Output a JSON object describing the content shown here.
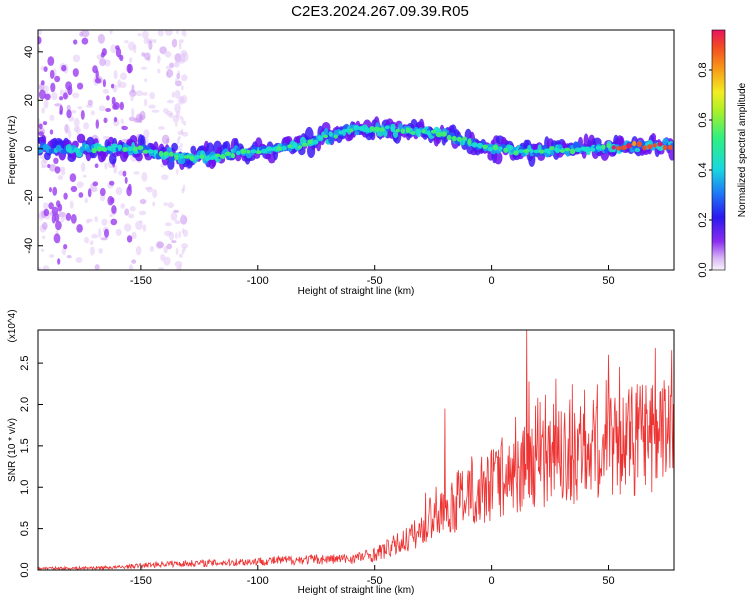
{
  "figure": {
    "title": "C2E3.2024.267.09.39.R05"
  },
  "colors": {
    "spectrogram_background": "#ffffff",
    "snr_line": "#ee3333",
    "colormap": [
      "#f7f0fa",
      "#e4c8f5",
      "#c890f0",
      "#9a3cf0",
      "#6a10f0",
      "#3a1cf5",
      "#1e5ef8",
      "#16a8f0",
      "#18e0d0",
      "#40f070",
      "#a0f030",
      "#f0f020",
      "#f8a018",
      "#f45020",
      "#e81860"
    ]
  },
  "chart_data": [
    {
      "type": "heatmap",
      "title": "",
      "xlabel": "Height of straight line (km)",
      "ylabel": "Frequency (Hz)",
      "xlim": [
        -194,
        78
      ],
      "ylim": [
        -50,
        49
      ],
      "x_ticks": [
        -150,
        -100,
        -50,
        0,
        50
      ],
      "y_ticks": [
        -40,
        -20,
        0,
        20,
        40
      ],
      "colorbar": {
        "label": "Normalized spectral amplitude",
        "range": [
          0,
          0.96
        ],
        "ticks": [
          "0.0",
          "0.2",
          "0.4",
          "0.6",
          "0.8"
        ]
      },
      "center_frequency_hz": [
        {
          "x": -190,
          "y": 0
        },
        {
          "x": -150,
          "y": 0
        },
        {
          "x": -130,
          "y": -4
        },
        {
          "x": -100,
          "y": -1
        },
        {
          "x": -80,
          "y": 2
        },
        {
          "x": -60,
          "y": 8
        },
        {
          "x": -40,
          "y": 8
        },
        {
          "x": -20,
          "y": 6
        },
        {
          "x": 0,
          "y": 0
        },
        {
          "x": 20,
          "y": -1
        },
        {
          "x": 40,
          "y": 0
        },
        {
          "x": 60,
          "y": 1
        },
        {
          "x": 78,
          "y": 1
        }
      ]
    },
    {
      "type": "line",
      "title": "",
      "xlabel": "Height of straight line (km)",
      "ylabel": "SNR (10 * v/v)",
      "y_multiplier": "(x10^4)",
      "xlim": [
        -194,
        78
      ],
      "ylim": [
        0,
        2.9
      ],
      "x_ticks": [
        -150,
        -100,
        -50,
        0,
        50
      ],
      "y_ticks": [
        0.0,
        0.5,
        1.0,
        1.5,
        2.0,
        2.5
      ],
      "series": [
        {
          "x": [
            -194,
            -180,
            -160,
            -140,
            -120,
            -100,
            -80,
            -60,
            -50,
            -40,
            -30,
            -20,
            -10,
            0,
            10,
            20,
            30,
            40,
            50,
            60,
            70,
            78
          ],
          "y": [
            0.02,
            0.02,
            0.03,
            0.07,
            0.08,
            0.1,
            0.12,
            0.13,
            0.18,
            0.3,
            0.45,
            0.65,
            0.85,
            1.0,
            1.1,
            1.25,
            1.3,
            1.35,
            1.45,
            1.5,
            1.55,
            1.55
          ],
          "peaks": [
            {
              "x": -20,
              "y": 1.95
            },
            {
              "x": 15,
              "y": 2.9
            },
            {
              "x": 50,
              "y": 2.6
            }
          ]
        }
      ]
    }
  ]
}
